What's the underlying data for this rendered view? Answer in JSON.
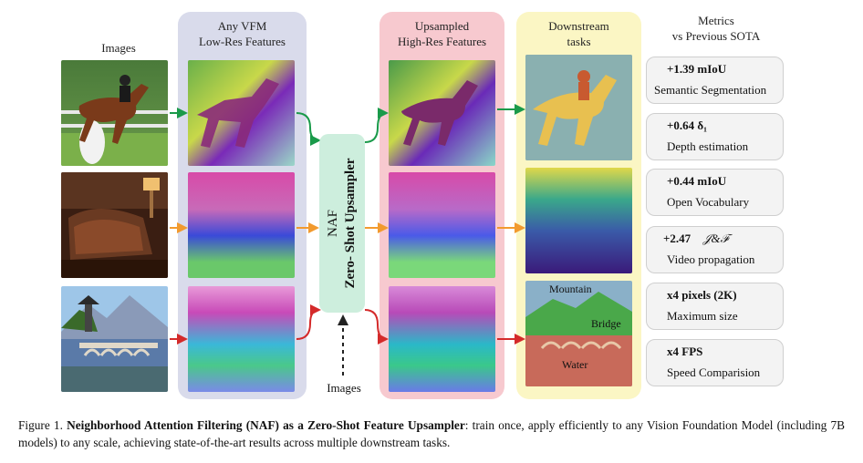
{
  "columns": {
    "images": "Images",
    "vfm_line1": "Any VFM",
    "vfm_line2": "Low-Res Features",
    "up_line1": "Upsampled",
    "up_line2": "High-Res Features",
    "down_line1": "Downstream",
    "down_line2": "tasks",
    "metrics_line1": "Metrics",
    "metrics_line2": "vs Previous SOTA"
  },
  "upsampler": {
    "line1": "NAF",
    "line2": "Zero- Shot Upsampler",
    "input_label": "Images"
  },
  "segmentation_labels": {
    "mountain": "Mountain",
    "bridge": "Bridge",
    "water": "Water"
  },
  "metrics": [
    {
      "value": "+1.39 mIoU",
      "desc": "Semantic Segmentation"
    },
    {
      "value": "+0.64 δ₁",
      "desc": "Depth estimation"
    },
    {
      "value": "+0.44 mIoU",
      "desc": "Open Vocabulary"
    },
    {
      "value": "+2.47",
      "value_suffix": "𝒥&ℱ",
      "desc": "Video propagation"
    },
    {
      "value": "x4 pixels (2K)",
      "desc": "Maximum size"
    },
    {
      "value": "x4 FPS",
      "desc": "Speed Comparision"
    }
  ],
  "caption": {
    "prefix": "Figure 1.",
    "bold": "Neighborhood Attention Filtering (NAF) as a Zero-Shot Feature Upsampler",
    "rest": ": train once, apply efficiently to any Vision Foundation Model (including 7B models) to any scale, achieving state-of-the-art results across multiple downstream tasks."
  },
  "colors": {
    "row1_arrow": "#1a9a4a",
    "row2_arrow": "#f29a2e",
    "row3_arrow": "#d42a2a",
    "vfm_panel": "#d9dbeb",
    "upsampled_panel": "#f7c9cf",
    "downstream_panel": "#fbf6c4",
    "upsampler_box": "#cdeedd"
  }
}
